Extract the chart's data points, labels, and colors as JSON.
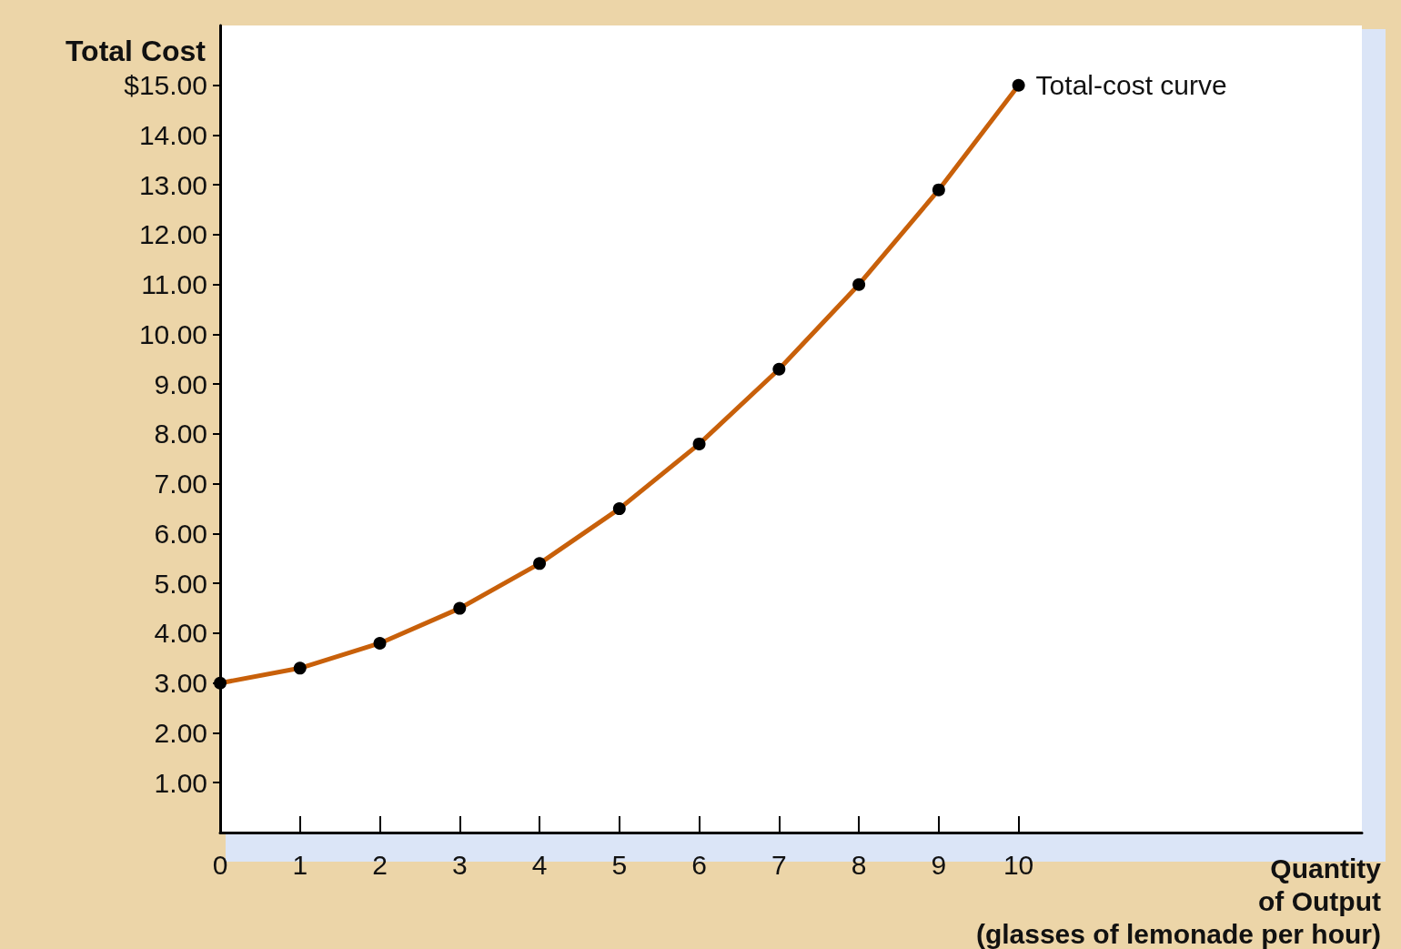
{
  "chart_data": {
    "type": "line",
    "xlabel": "Quantity\nof Output\n(glasses of lemonade per hour)",
    "ylabel": "Total Cost",
    "x": [
      0,
      1,
      2,
      3,
      4,
      5,
      6,
      7,
      8,
      9,
      10
    ],
    "series": [
      {
        "name": "Total-cost curve",
        "color": "#c8600a",
        "values": [
          3.0,
          3.3,
          3.8,
          4.5,
          5.4,
          6.5,
          7.8,
          9.3,
          11.0,
          12.9,
          15.0
        ]
      }
    ],
    "xlim": [
      0,
      14.3
    ],
    "xticks": [
      0,
      1,
      2,
      3,
      4,
      5,
      6,
      7,
      8,
      9,
      10
    ],
    "ylim": [
      0,
      16.2
    ],
    "yticks": [
      {
        "value": 1,
        "label": "1.00"
      },
      {
        "value": 2,
        "label": "2.00"
      },
      {
        "value": 3,
        "label": "3.00"
      },
      {
        "value": 4,
        "label": "4.00"
      },
      {
        "value": 5,
        "label": "5.00"
      },
      {
        "value": 6,
        "label": "6.00"
      },
      {
        "value": 7,
        "label": "7.00"
      },
      {
        "value": 8,
        "label": "8.00"
      },
      {
        "value": 9,
        "label": "9.00"
      },
      {
        "value": 10,
        "label": "10.00"
      },
      {
        "value": 11,
        "label": "11.00"
      },
      {
        "value": 12,
        "label": "12.00"
      },
      {
        "value": 13,
        "label": "13.00"
      },
      {
        "value": 14,
        "label": "14.00"
      },
      {
        "value": 15,
        "label": "$15.00"
      }
    ],
    "grid": false,
    "legend": false,
    "marker": "circle",
    "line_style": "solid"
  }
}
